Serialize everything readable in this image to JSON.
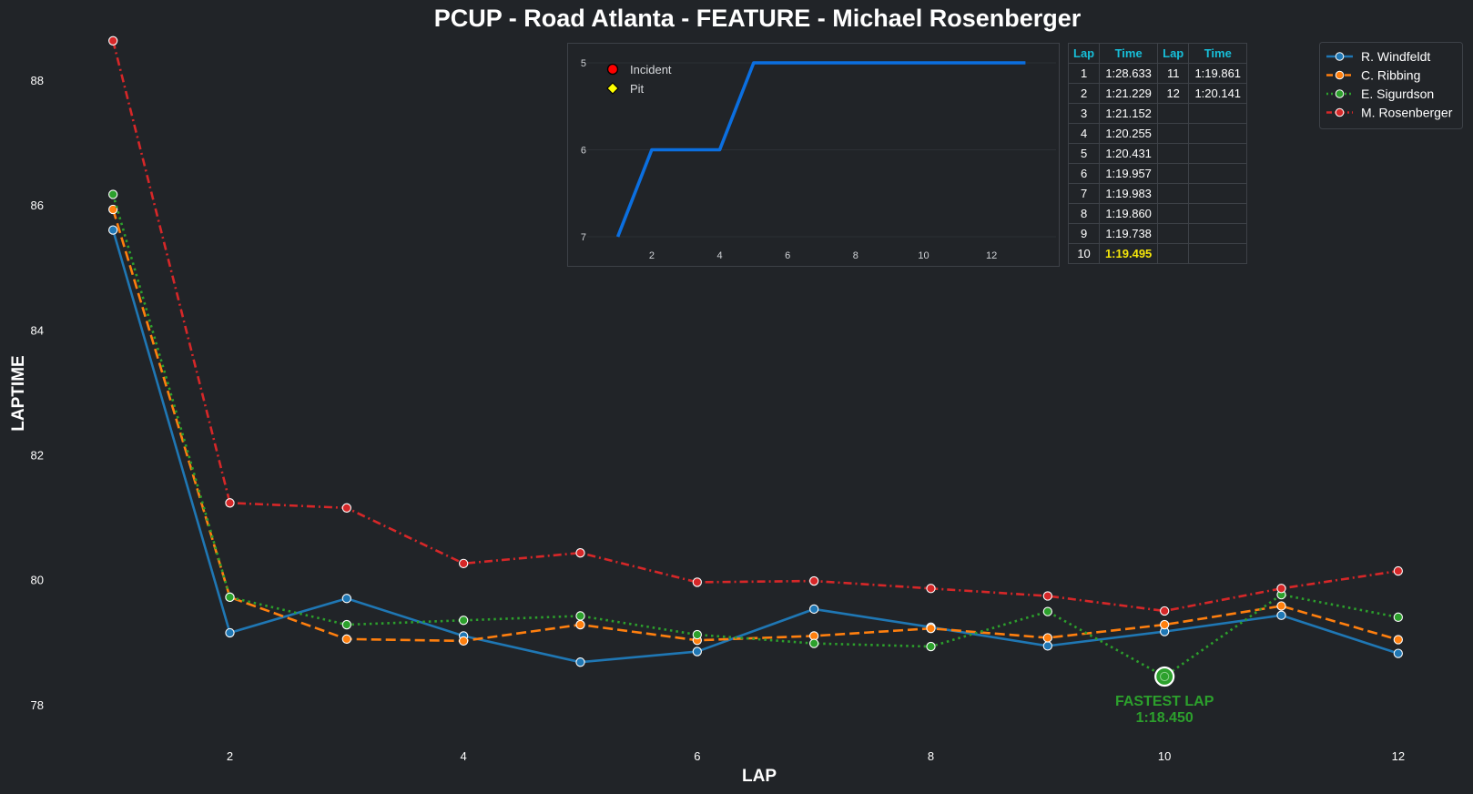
{
  "chart_data": [
    {
      "type": "line",
      "title": "PCUP - Road Atlanta - FEATURE - Michael Rosenberger",
      "xlabel": "LAP",
      "ylabel": "LAPTIME",
      "xlim": [
        0.5,
        12.5
      ],
      "ylim": [
        77.4,
        88.7
      ],
      "x_ticks": [
        2,
        4,
        6,
        8,
        10,
        12
      ],
      "y_ticks": [
        78,
        80,
        82,
        84,
        86,
        88
      ],
      "grid": false,
      "legend_position": "top-right",
      "x": [
        1,
        2,
        3,
        4,
        5,
        6,
        7,
        8,
        9,
        10,
        11,
        12
      ],
      "series": [
        {
          "name": "R. Windfeldt",
          "color": "#1f77b4",
          "line_style": "solid",
          "values": [
            85.6,
            79.15,
            79.7,
            79.1,
            78.68,
            78.85,
            79.53,
            79.24,
            78.94,
            79.17,
            79.43,
            78.82
          ]
        },
        {
          "name": "C. Ribbing",
          "color": "#ff7f0e",
          "line_style": "dashed",
          "values": [
            85.93,
            79.72,
            79.05,
            79.02,
            79.28,
            79.03,
            79.1,
            79.22,
            79.07,
            79.28,
            79.58,
            79.04
          ]
        },
        {
          "name": "E. Sigurdson",
          "color": "#2ca02c",
          "line_style": "dotted",
          "values": [
            86.17,
            79.72,
            79.28,
            79.35,
            79.42,
            79.12,
            78.98,
            78.93,
            79.49,
            78.45,
            79.76,
            79.4
          ]
        },
        {
          "name": "M. Rosenberger",
          "color": "#d62728",
          "line_style": "dashdot",
          "values": [
            88.63,
            81.23,
            81.15,
            80.26,
            80.43,
            79.96,
            79.98,
            79.86,
            79.74,
            79.5,
            79.86,
            80.14
          ]
        }
      ],
      "annotation": {
        "x": 10,
        "y": 78.45,
        "series": "E. Sigurdson",
        "color": "#2ca02c",
        "line1": "FASTEST LAP",
        "line2": "1:18.450"
      }
    },
    {
      "type": "line",
      "title": "",
      "x": [
        1,
        2,
        3,
        4,
        5,
        6,
        7,
        8,
        9,
        10,
        11,
        12,
        13
      ],
      "values": [
        7,
        6,
        6,
        6,
        5,
        5,
        5,
        5,
        5,
        5,
        5,
        5,
        5
      ],
      "xlim": [
        0.1,
        13.9
      ],
      "ylim": [
        7,
        5
      ],
      "y_inverted": true,
      "x_ticks": [
        2,
        4,
        6,
        8,
        10,
        12
      ],
      "y_ticks": [
        5,
        6,
        7
      ],
      "line_color": "#0b6fe0",
      "legend": [
        {
          "label": "Incident",
          "marker": "circle",
          "color": "#ff0000"
        },
        {
          "label": "Pit",
          "marker": "diamond",
          "color": "#ffff00"
        }
      ]
    }
  ],
  "lap_table": {
    "headers": [
      "Lap",
      "Time",
      "Lap",
      "Time"
    ],
    "rows": [
      [
        "1",
        "1:28.633",
        "11",
        "1:19.861"
      ],
      [
        "2",
        "1:21.229",
        "12",
        "1:20.141"
      ],
      [
        "3",
        "1:21.152",
        "",
        ""
      ],
      [
        "4",
        "1:20.255",
        "",
        ""
      ],
      [
        "5",
        "1:20.431",
        "",
        ""
      ],
      [
        "6",
        "1:19.957",
        "",
        ""
      ],
      [
        "7",
        "1:19.983",
        "",
        ""
      ],
      [
        "8",
        "1:19.860",
        "",
        ""
      ],
      [
        "9",
        "1:19.738",
        "",
        ""
      ],
      [
        "10",
        "1:19.495",
        "",
        ""
      ]
    ],
    "best_row_index": 9,
    "best_color": "#f5e60a",
    "header_color": "#17bed8"
  }
}
